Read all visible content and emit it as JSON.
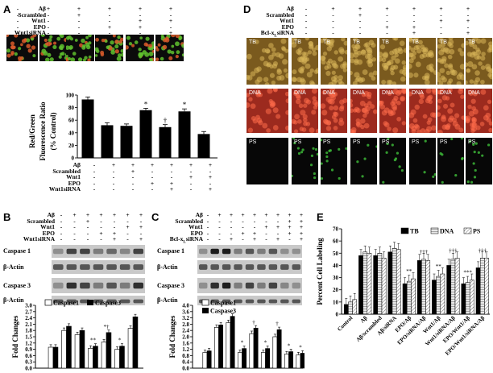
{
  "panelA": {
    "letter": "A",
    "conds": [
      "Aβ",
      "Scrambled",
      "Wnt1",
      "EPO",
      "Wnt1siRNA"
    ],
    "top_vals": [
      [
        "-",
        "+",
        "+",
        "+",
        "+",
        "+"
      ],
      [
        "-",
        "-",
        "+",
        "-",
        "-",
        "-"
      ],
      [
        "-",
        "-",
        "-",
        "-",
        "+",
        "+"
      ],
      [
        "-",
        "-",
        "-",
        "+",
        "+",
        "-"
      ],
      [
        "-",
        "-",
        "-",
        "-",
        "-",
        "+"
      ]
    ],
    "ylabel_lines": [
      "Red/Green",
      "Fluorescence Ratio",
      "(% Control)"
    ],
    "bottom_conds": [
      "Aβ",
      "Scrambled",
      "Wnt1",
      "EPO",
      "Wnt1siRNA"
    ],
    "bottom_vals": [
      [
        "-",
        "+",
        "+",
        "+",
        "+",
        "+",
        "+"
      ],
      [
        "-",
        "-",
        "+",
        "-",
        "-",
        "-",
        "-"
      ],
      [
        "-",
        "-",
        "-",
        "-",
        "-",
        "+",
        "+"
      ],
      [
        "-",
        "-",
        "-",
        "+",
        "+",
        "-",
        "-"
      ],
      [
        "-",
        "-",
        "-",
        "-",
        "+",
        "-",
        "+"
      ]
    ]
  },
  "panelB": {
    "letter": "B",
    "conds": [
      "Aβ",
      "Scrambled",
      "Wnt1",
      "EPO",
      "Wnt1siRNA"
    ],
    "vals": [
      [
        "-",
        "+",
        "+",
        "+",
        "+",
        "+",
        "+"
      ],
      [
        "-",
        "-",
        "+",
        "-",
        "-",
        "-",
        "-"
      ],
      [
        "-",
        "-",
        "-",
        "-",
        "-",
        "+",
        "+"
      ],
      [
        "-",
        "-",
        "-",
        "+",
        "+",
        "-",
        "-"
      ],
      [
        "-",
        "-",
        "-",
        "-",
        "+",
        "-",
        "+"
      ]
    ],
    "blots": [
      "Caspase 1",
      "β-Actin",
      "Caspase 3",
      "β-Actin"
    ],
    "legend": [
      "Caspase1",
      "Caspase3"
    ],
    "ylabel": "Fold Changes"
  },
  "panelC": {
    "letter": "C",
    "conds": [
      "Aβ",
      "Scrambled",
      "Wnt1",
      "EPO",
      "Bcl-xLsiRNA"
    ],
    "vals": [
      [
        "-",
        "+",
        "+",
        "+",
        "+",
        "+",
        "+",
        "+",
        "+"
      ],
      [
        "-",
        "-",
        "-",
        "-",
        "-",
        "-",
        "-",
        "+",
        "+"
      ],
      [
        "-",
        "-",
        "-",
        "-",
        "-",
        "+",
        "+",
        "+",
        "+"
      ],
      [
        "-",
        "-",
        "-",
        "+",
        "+",
        "-",
        "-",
        "+",
        "+"
      ],
      [
        "-",
        "-",
        "+",
        "-",
        "+",
        "-",
        "+",
        "-",
        "+"
      ]
    ],
    "blots": [
      "Caspase 1",
      "β-Actin",
      "Caspase 3",
      "β-Actin"
    ],
    "legend": [
      "Caspase1",
      "Caspase3"
    ],
    "ylabel": "Fold Changes"
  },
  "panelD": {
    "letter": "D",
    "conds": [
      "Aβ",
      "Scrambled",
      "Wnt1",
      "EPO",
      "Bcl-xLsiRNA"
    ],
    "vals": [
      [
        "-",
        "+",
        "+",
        "+",
        "+",
        "+",
        "+",
        "+"
      ],
      [
        "-",
        "-",
        "+",
        "-",
        "-",
        "-",
        "-",
        "-"
      ],
      [
        "-",
        "-",
        "-",
        "-",
        "-",
        "+",
        "+",
        "+"
      ],
      [
        "-",
        "-",
        "-",
        "+",
        "+",
        "-",
        "-",
        "+"
      ],
      [
        "-",
        "-",
        "-",
        "-",
        "+",
        "-",
        "+",
        "+"
      ]
    ],
    "row_labels": [
      "TB",
      "DNA",
      "PS"
    ]
  },
  "panelE": {
    "letter": "E",
    "ylabel": "Percent Cell Labeling",
    "legend": [
      "TB",
      "DNA",
      "PS"
    ]
  },
  "chart_data": [
    {
      "type": "bar",
      "panel": "A",
      "ylabel": "Red/Green Fluorescence Ratio (% Control)",
      "ylim": [
        0,
        100
      ],
      "yticks": [
        0,
        20,
        40,
        60,
        80,
        100
      ],
      "values": [
        93,
        52,
        51,
        76,
        49,
        74,
        38
      ],
      "errors": [
        4,
        4,
        3,
        3,
        4,
        4,
        4
      ],
      "marks": [
        "",
        "",
        "",
        "*",
        "†",
        "*",
        ""
      ]
    },
    {
      "type": "bar",
      "panel": "B",
      "ylabel": "Fold Changes",
      "ylim": [
        0,
        3.0
      ],
      "yticks": [
        0,
        0.3,
        0.6,
        0.9,
        1.2,
        1.5,
        1.8,
        2.1,
        2.4,
        2.7,
        3.0
      ],
      "series": [
        {
          "name": "Caspase1",
          "values": [
            1.0,
            1.8,
            1.6,
            0.95,
            1.25,
            0.9,
            1.9
          ]
        },
        {
          "name": "Caspase3",
          "values": [
            1.0,
            2.0,
            1.8,
            1.05,
            1.7,
            1.05,
            2.45
          ]
        }
      ],
      "marks": [
        "",
        "",
        "",
        "**",
        "*†",
        "*",
        ""
      ]
    },
    {
      "type": "bar",
      "panel": "C",
      "ylabel": "Fold Changes",
      "ylim": [
        0,
        4.0
      ],
      "yticks": [
        0,
        0.4,
        0.8,
        1.2,
        1.6,
        2.0,
        2.4,
        2.8,
        3.2,
        3.6,
        4.0
      ],
      "series": [
        {
          "name": "Caspase1",
          "values": [
            1.0,
            2.6,
            2.9,
            1.0,
            2.2,
            1.0,
            2.0,
            0.9,
            0.85
          ]
        },
        {
          "name": "Caspase3",
          "values": [
            1.1,
            2.75,
            3.3,
            1.25,
            2.55,
            1.25,
            2.45,
            1.05,
            0.95
          ]
        }
      ],
      "marks": [
        "",
        "",
        "",
        "*",
        "†",
        "*",
        "†",
        "*",
        "*"
      ]
    },
    {
      "type": "bar",
      "panel": "E",
      "ylabel": "Percent Cell Labeling",
      "ylim": [
        0,
        70
      ],
      "yticks": [
        0,
        10,
        20,
        30,
        40,
        50,
        60,
        70
      ],
      "categories": [
        "Control",
        "Aβ",
        "Aβ/scrambled",
        "Aβ/siRNA",
        "EPO/Aβ",
        "EPO/siRNA/Aβ",
        "Wnt1/Aβ",
        "Wnt1/siRNA/Aβ",
        "EPO/Wnt1/Aβ",
        "EPO/Wnt1/siRNA/Aβ"
      ],
      "series": [
        {
          "name": "TB",
          "values": [
            8,
            48,
            48,
            51,
            25,
            44,
            28,
            40,
            25,
            38
          ]
        },
        {
          "name": "DNA",
          "values": [
            10,
            51,
            50,
            54,
            27,
            45,
            31,
            45,
            26,
            46
          ]
        },
        {
          "name": "PS",
          "values": [
            12,
            50,
            46,
            53,
            29,
            44,
            33,
            46,
            28,
            46
          ]
        }
      ],
      "marks": [
        "",
        "",
        "",
        "",
        "**",
        "†††",
        "**",
        "†††",
        "***",
        "†††"
      ]
    }
  ]
}
